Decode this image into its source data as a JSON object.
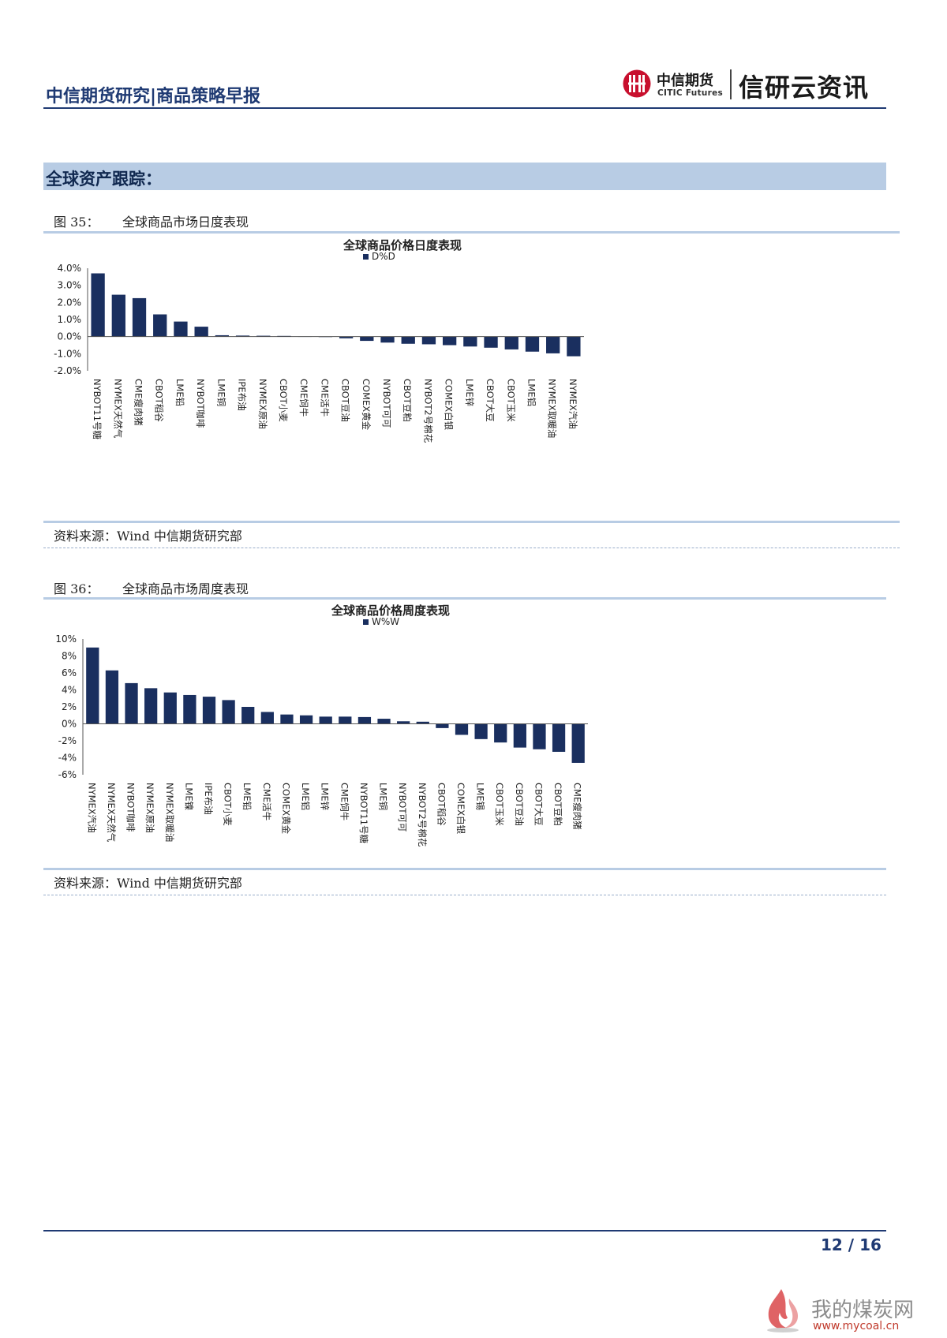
{
  "header": {
    "left_title": "中信期货研究|商品策略早报",
    "brand_cn": "中信期货",
    "brand_en": "CITIC Futures",
    "brand_right": "信研云资讯"
  },
  "section": {
    "title": "全球资产跟踪："
  },
  "figures": [
    {
      "label": "图 35：",
      "title": "全球商品市场日度表现",
      "source": "资料来源：Wind  中信期货研究部"
    },
    {
      "label": "图 36：",
      "title": "全球商品市场周度表现",
      "source": "资料来源：Wind  中信期货研究部"
    }
  ],
  "colors": {
    "bar": "#1a2f5f",
    "section_bg": "#b8cce4",
    "brand_blue": "#1f3a73",
    "logo_red": "#c8102e"
  },
  "chart_data": [
    {
      "type": "bar",
      "title": "全球商品价格日度表现",
      "legend": "D%D",
      "ylim": [
        -2.0,
        4.0
      ],
      "ytick_labels": [
        "4.0%",
        "3.0%",
        "2.0%",
        "1.0%",
        "0.0%",
        "-1.0%",
        "-2.0%"
      ],
      "categories": [
        "NYBOT11号糖",
        "NYMEX天然气",
        "CME瘦肉猪",
        "CBOT稻谷",
        "LME铅",
        "NYBOT咖啡",
        "LME铜",
        "IPE布油",
        "NYMEX原油",
        "CBOT小麦",
        "CME饲牛",
        "CME活牛",
        "CBOT豆油",
        "COMEX黄金",
        "NYBOT可可",
        "CBOT豆粕",
        "NYBOT2号棉花",
        "COMEX白银",
        "LME锌",
        "CBOT大豆",
        "CBOT玉米",
        "LME铝",
        "NYMEX取暖油",
        "NYMEX汽油"
      ],
      "values": [
        3.7,
        2.45,
        2.25,
        1.3,
        0.88,
        0.58,
        0.08,
        0.06,
        0.05,
        0.04,
        0.01,
        0.0,
        -0.1,
        -0.25,
        -0.35,
        -0.42,
        -0.45,
        -0.5,
        -0.58,
        -0.65,
        -0.75,
        -0.88,
        -0.98,
        -1.15
      ]
    },
    {
      "type": "bar",
      "title": "全球商品价格周度表现",
      "legend": "W%W",
      "ylim": [
        -6,
        10
      ],
      "ytick_labels": [
        "10%",
        "8%",
        "6%",
        "4%",
        "2%",
        "0%",
        "-2%",
        "-4%",
        "-6%"
      ],
      "categories": [
        "NYMEX汽油",
        "NYMEX天然气",
        "NYBOT咖啡",
        "NYMEX原油",
        "NYMEX取暖油",
        "LME镍",
        "IPE布油",
        "CBOT小麦",
        "LME铅",
        "CME活牛",
        "COMEX黄金",
        "LME铝",
        "LME锌",
        "CME饲牛",
        "NYBOT11号糖",
        "LME铜",
        "NYBOT可可",
        "NYBOT2号棉花",
        "CBOT稻谷",
        "COMEX白银",
        "LME锡",
        "CBOT玉米",
        "CBOT豆油",
        "CBOT大豆",
        "CBOT豆粕",
        "CME瘦肉猪"
      ],
      "values": [
        9.0,
        6.3,
        4.8,
        4.2,
        3.7,
        3.4,
        3.2,
        2.8,
        2.0,
        1.4,
        1.1,
        1.0,
        0.85,
        0.85,
        0.8,
        0.6,
        0.3,
        0.25,
        -0.5,
        -1.3,
        -1.8,
        -2.2,
        -2.8,
        -3.0,
        -3.3,
        -4.6
      ]
    }
  ],
  "footer": {
    "page": "12 / 16"
  },
  "watermark": {
    "cn": "我的煤炭网",
    "url": "www.mycoal.cn"
  }
}
